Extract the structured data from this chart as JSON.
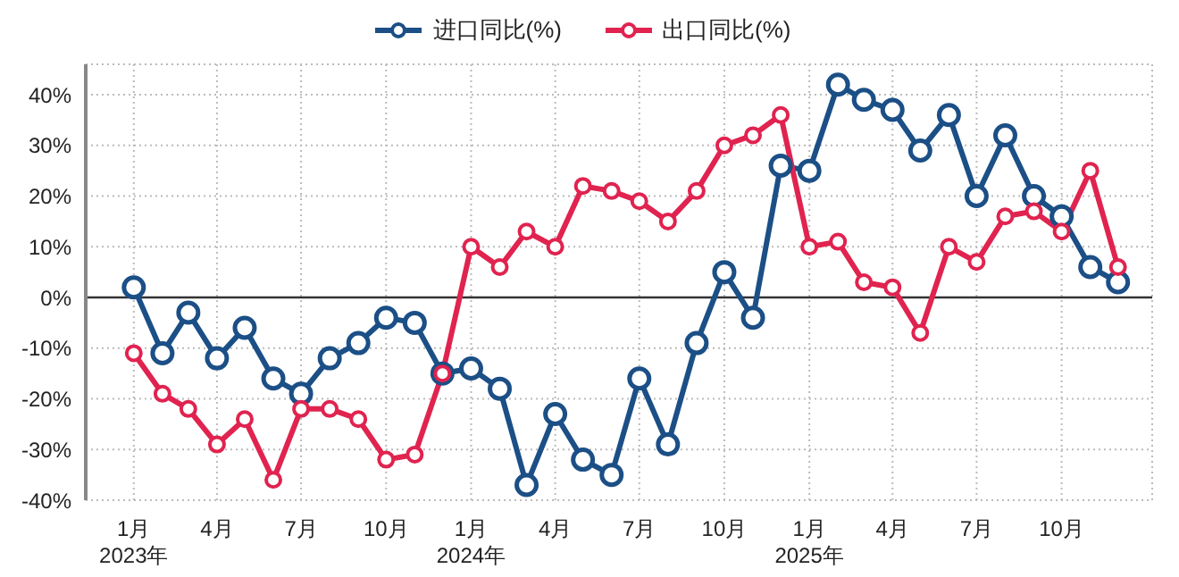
{
  "chart_data": {
    "type": "line",
    "x": [
      "2023-01",
      "2023-02",
      "2023-03",
      "2023-04",
      "2023-05",
      "2023-06",
      "2023-07",
      "2023-08",
      "2023-09",
      "2023-10",
      "2023-11",
      "2023-12",
      "2024-01",
      "2024-02",
      "2024-03",
      "2024-04",
      "2024-05",
      "2024-06",
      "2024-07",
      "2024-08",
      "2024-09",
      "2024-10",
      "2024-11",
      "2024-12",
      "2025-01",
      "2025-02",
      "2025-03",
      "2025-04",
      "2025-05",
      "2025-06",
      "2025-07",
      "2025-08",
      "2025-09",
      "2025-10",
      "2025-11",
      "2025-12"
    ],
    "series": [
      {
        "name": "进口同比(%)",
        "color": "#1b4f86",
        "values": [
          2,
          -11,
          -3,
          -12,
          -6,
          -16,
          -19,
          -12,
          -9,
          -4,
          -5,
          -15,
          -14,
          -18,
          -37,
          -23,
          -32,
          -35,
          -16,
          -29,
          -9,
          5,
          -4,
          26,
          25,
          42,
          39,
          37,
          29,
          36,
          20,
          32,
          20,
          16,
          6,
          3
        ]
      },
      {
        "name": "出口同比(%)",
        "color": "#e0234f",
        "values": [
          -11,
          -19,
          -22,
          -29,
          -24,
          -36,
          -22,
          -22,
          -24,
          -32,
          -31,
          -15,
          10,
          6,
          13,
          10,
          22,
          21,
          19,
          15,
          21,
          30,
          32,
          36,
          10,
          11,
          3,
          2,
          -7,
          10,
          7,
          16,
          17,
          13,
          25,
          6
        ]
      }
    ],
    "xlim": [
      "2022-11-10",
      "2026-01-07"
    ],
    "xticks": [
      {
        "value": "2023-01",
        "label": "1月\n2023年"
      },
      {
        "value": "2023-04",
        "label": "4月"
      },
      {
        "value": "2023-07",
        "label": "7月"
      },
      {
        "value": "2023-10",
        "label": "10月"
      },
      {
        "value": "2024-01",
        "label": "1月\n2024年"
      },
      {
        "value": "2024-04",
        "label": "4月"
      },
      {
        "value": "2024-07",
        "label": "7月"
      },
      {
        "value": "2024-10",
        "label": "10月"
      },
      {
        "value": "2025-01",
        "label": "1月\n2025年"
      },
      {
        "value": "2025-04",
        "label": "4月"
      },
      {
        "value": "2025-07",
        "label": "7月"
      },
      {
        "value": "2025-10",
        "label": "10月"
      }
    ],
    "ylim": [
      -40,
      46
    ],
    "yticks": [
      {
        "value": -40,
        "label": "-40%"
      },
      {
        "value": -30,
        "label": "-30%"
      },
      {
        "value": -20,
        "label": "-20%"
      },
      {
        "value": -10,
        "label": "-10%"
      },
      {
        "value": 0,
        "label": "0%"
      },
      {
        "value": 10,
        "label": "10%"
      },
      {
        "value": 20,
        "label": "20%"
      },
      {
        "value": 30,
        "label": "30%"
      },
      {
        "value": 40,
        "label": "40%"
      }
    ],
    "ref_lines": [
      {
        "axis": "y",
        "value": 0,
        "color": "#333333"
      }
    ],
    "grid": true,
    "legend": "top",
    "marker": "circle",
    "line_style": "solid"
  }
}
